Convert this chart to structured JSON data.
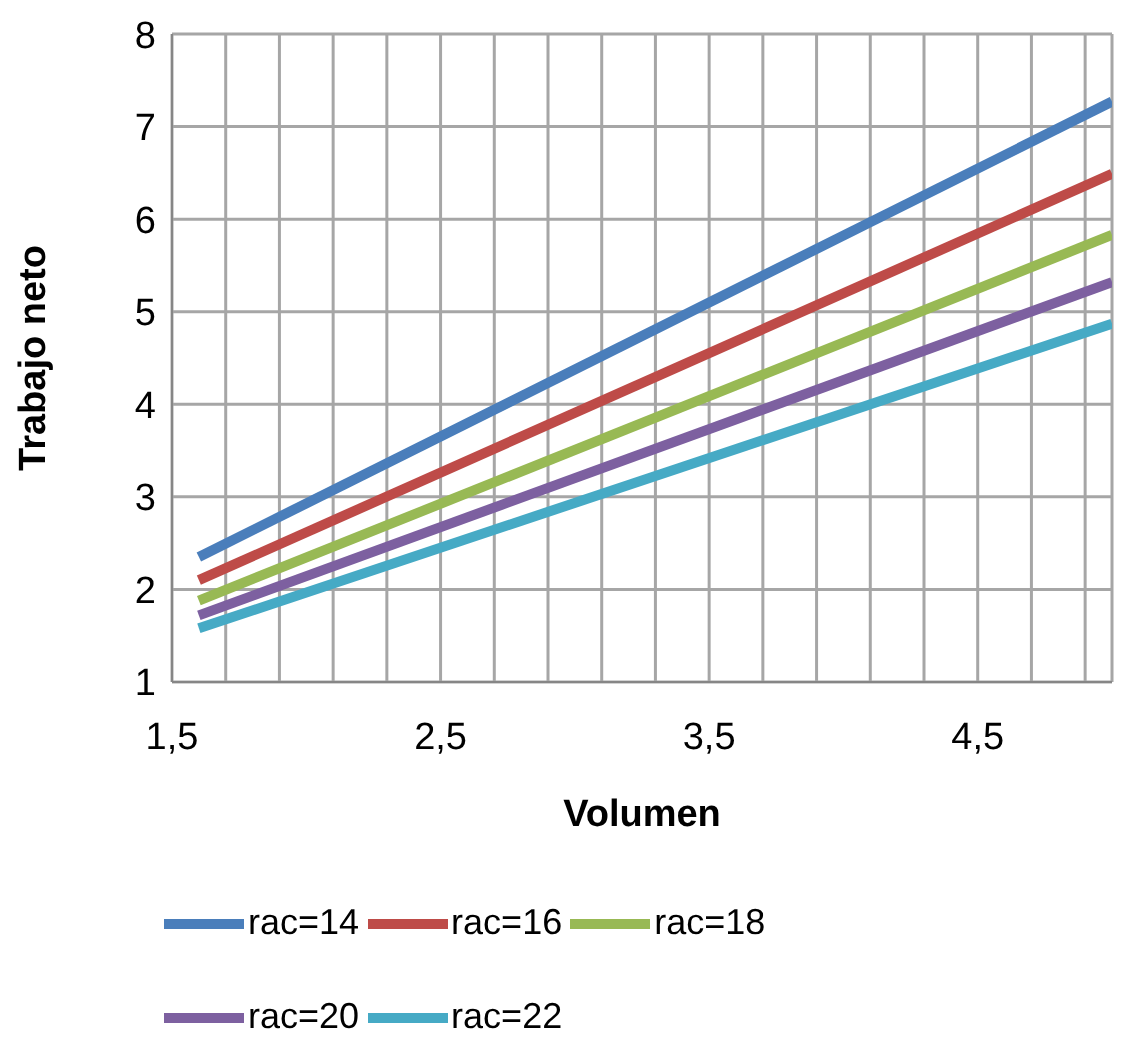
{
  "chart_data": {
    "type": "line",
    "xlabel": "Volumen",
    "ylabel": "Trabajo neto",
    "x": [
      1.6,
      5
    ],
    "xlim": [
      1.5,
      5
    ],
    "xticks": [
      {
        "value": 1.5,
        "label": "1,5"
      },
      {
        "value": 1.7,
        "label": null
      },
      {
        "value": 1.9,
        "label": null
      },
      {
        "value": 2.1,
        "label": null
      },
      {
        "value": 2.3,
        "label": null
      },
      {
        "value": 2.5,
        "label": "2,5"
      },
      {
        "value": 2.7,
        "label": null
      },
      {
        "value": 2.9,
        "label": null
      },
      {
        "value": 3.1,
        "label": null
      },
      {
        "value": 3.3,
        "label": null
      },
      {
        "value": 3.5,
        "label": "3,5"
      },
      {
        "value": 3.7,
        "label": null
      },
      {
        "value": 3.9,
        "label": null
      },
      {
        "value": 4.1,
        "label": null
      },
      {
        "value": 4.3,
        "label": null
      },
      {
        "value": 4.5,
        "label": "4,5"
      },
      {
        "value": 4.7,
        "label": null
      },
      {
        "value": 4.9,
        "label": null
      },
      {
        "value": 5,
        "label": null
      }
    ],
    "ylim": [
      1,
      8
    ],
    "yticks": [
      1,
      2,
      3,
      4,
      5,
      6,
      7,
      8
    ],
    "grid": true,
    "legend": "bottom",
    "marker": "none",
    "line_style": "solid",
    "series": [
      {
        "name": "rac=14",
        "color": "#4a7ebb",
        "values": [
          2.35,
          7.27
        ]
      },
      {
        "name": "rac=16",
        "color": "#be4b48",
        "values": [
          2.1,
          6.49
        ]
      },
      {
        "name": "rac=18",
        "color": "#98b954",
        "values": [
          1.88,
          5.83
        ]
      },
      {
        "name": "rac=20",
        "color": "#7d60a0",
        "values": [
          1.72,
          5.32
        ]
      },
      {
        "name": "rac=22",
        "color": "#46aac5",
        "values": [
          1.58,
          4.87
        ]
      }
    ]
  }
}
